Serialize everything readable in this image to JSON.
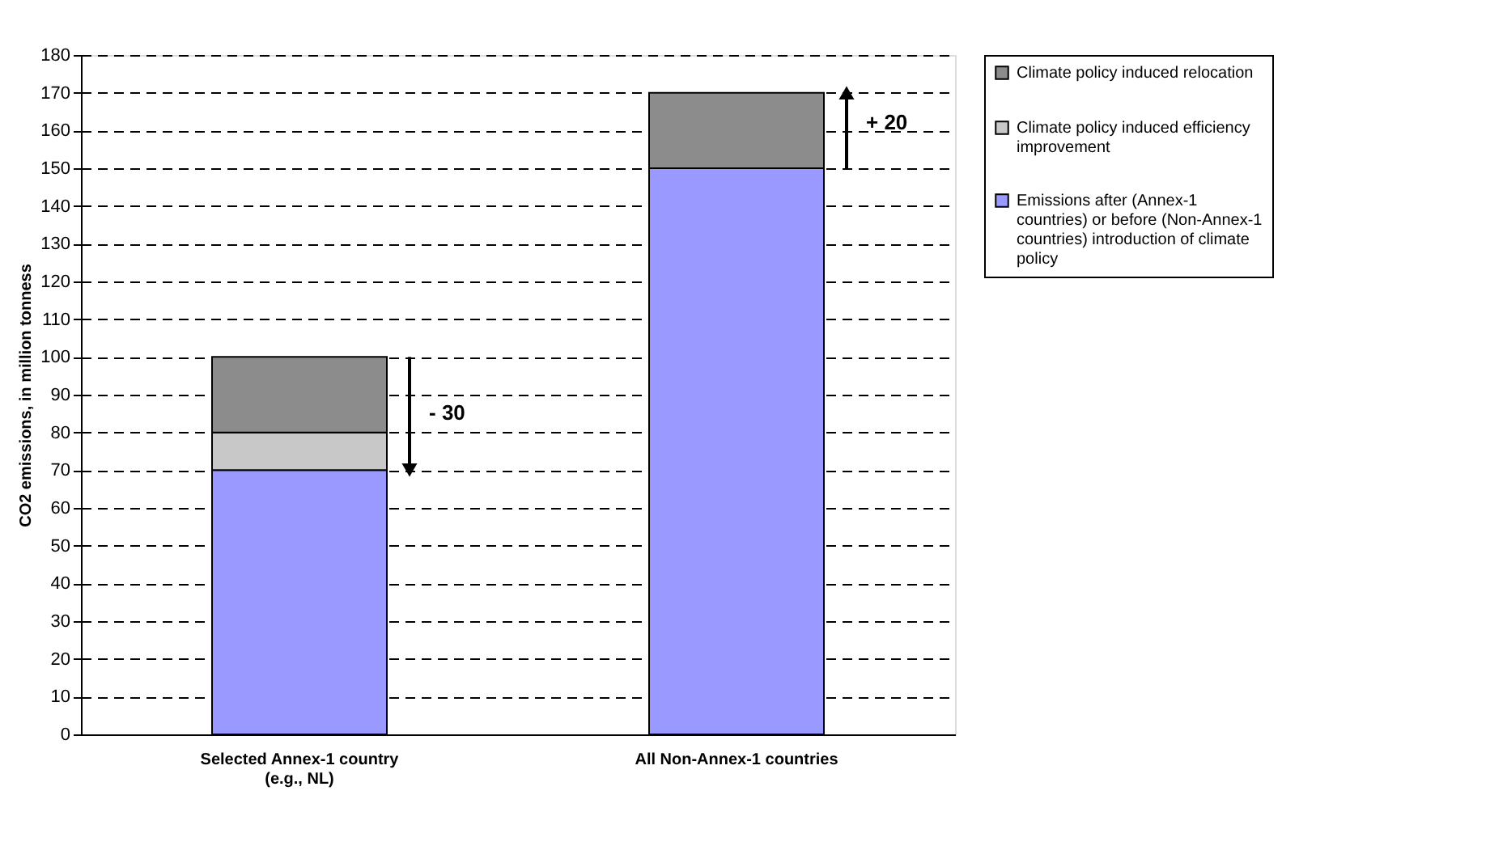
{
  "chart_data": {
    "type": "bar",
    "stacked": true,
    "ylabel": "CO2 emissions, in million tonness",
    "categories": [
      "Selected Annex-1 country (e.g., NL)",
      "All Non-Annex-1 countries"
    ],
    "series": [
      {
        "name": "Emissions after (Annex-1 countries) or before (Non-Annex-1 countries) introduction of climate policy",
        "color": "#9999ff",
        "values": [
          70,
          150
        ]
      },
      {
        "name": "Climate policy induced efficiency improvement",
        "color": "#c8c8c8",
        "values": [
          10,
          0
        ]
      },
      {
        "name": "Climate policy induced relocation",
        "color": "#8c8c8c",
        "values": [
          20,
          20
        ]
      }
    ],
    "ylim": [
      0,
      180
    ],
    "yticks": [
      0,
      10,
      20,
      30,
      40,
      50,
      60,
      70,
      80,
      90,
      100,
      110,
      120,
      130,
      140,
      150,
      160,
      170,
      180
    ],
    "grid": "y",
    "legend": "right",
    "annotations": [
      "- 30",
      "+ 20"
    ]
  }
}
